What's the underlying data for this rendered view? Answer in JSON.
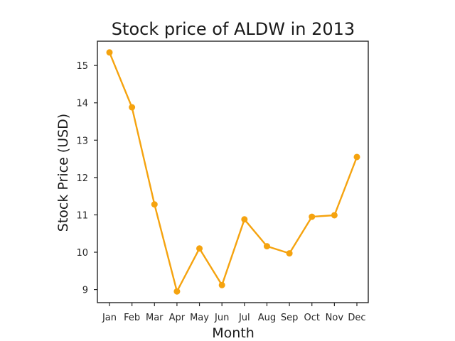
{
  "chart_data": {
    "type": "line",
    "title": "Stock price of ALDW in 2013",
    "xlabel": "Month",
    "ylabel": "Stock Price (USD)",
    "categories": [
      "Jan",
      "Feb",
      "Mar",
      "Apr",
      "May",
      "Jun",
      "Jul",
      "Aug",
      "Sep",
      "Oct",
      "Nov",
      "Dec"
    ],
    "series": [
      {
        "values": [
          15.35,
          13.88,
          11.28,
          8.95,
          10.1,
          9.12,
          10.88,
          10.16,
          9.97,
          10.95,
          10.99,
          12.55
        ]
      }
    ],
    "yticks": [
      9,
      10,
      11,
      12,
      13,
      14,
      15
    ],
    "ylim": [
      8.65,
      15.65
    ],
    "line_color": "#f5a30f",
    "grid": false,
    "legend": "none"
  }
}
